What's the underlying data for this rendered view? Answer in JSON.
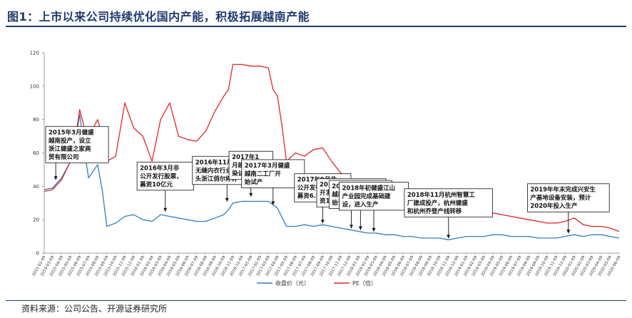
{
  "header": {
    "title": "图1：上市以来公司持续优化国内产能，积极拓展越南产能"
  },
  "footer": {
    "source": "资料来源：公司公告、开源证券研究所"
  },
  "colors": {
    "price": "#2e7fc2",
    "pe": "#e0262a",
    "title": "#1f3a6e"
  },
  "chart_data": {
    "type": "line",
    "x_type": "date",
    "xlim": [
      "2015-02-09",
      "2020-06-09"
    ],
    "ylim": [
      0,
      120
    ],
    "yticks": [
      0,
      20,
      40,
      60,
      80,
      100,
      120
    ],
    "xtick_labels": [
      "2015-02-09",
      "2015-03-09",
      "2015-04-09",
      "2015-05-09",
      "2015-06-09",
      "2015-07-09",
      "2015-08-09",
      "2015-09-09",
      "2015-10-09",
      "2015-11-09",
      "2015-12-09",
      "2016-01-09",
      "2016-02-09",
      "2016-03-09",
      "2016-04-09",
      "2016-05-09",
      "2016-06-09",
      "2016-07-09",
      "2016-08-09",
      "2016-09-09",
      "2016-10-09",
      "2016-11-09",
      "2016-12-09",
      "2017-01-09",
      "2017-02-09",
      "2017-03-09",
      "2017-04-09",
      "2017-05-09",
      "2017-06-09",
      "2017-07-09",
      "2017-08-09",
      "2017-09-09",
      "2017-10-09",
      "2017-11-09",
      "2017-12-09",
      "2018-01-09",
      "2018-02-09",
      "2018-03-09",
      "2018-04-09",
      "2018-05-09",
      "2018-06-09",
      "2018-07-09",
      "2018-08-09",
      "2018-09-09",
      "2018-10-09",
      "2018-11-09",
      "2018-12-09",
      "2019-01-09",
      "2019-02-09",
      "2019-03-09",
      "2019-04-09",
      "2019-05-09",
      "2019-06-09",
      "2019-07-09",
      "2019-08-09",
      "2019-09-09",
      "2019-10-09",
      "2019-11-09",
      "2019-12-09",
      "2020-01-09",
      "2020-02-09",
      "2020-03-09",
      "2020-04-09",
      "2020-05-09",
      "2020-06-09"
    ],
    "series": [
      {
        "name": "收盘价（元）",
        "color": "#2e7fc2",
        "points": [
          [
            "2015-02-09",
            38
          ],
          [
            "2015-03-09",
            39
          ],
          [
            "2015-04-09",
            45
          ],
          [
            "2015-05-09",
            55
          ],
          [
            "2015-05-25",
            66
          ],
          [
            "2015-06-09",
            83
          ],
          [
            "2015-06-25",
            62
          ],
          [
            "2015-07-09",
            45
          ],
          [
            "2015-08-09",
            53
          ],
          [
            "2015-08-25",
            37
          ],
          [
            "2015-09-09",
            16
          ],
          [
            "2015-10-09",
            18
          ],
          [
            "2015-11-09",
            22
          ],
          [
            "2015-12-09",
            23
          ],
          [
            "2016-01-09",
            20
          ],
          [
            "2016-02-09",
            19
          ],
          [
            "2016-03-09",
            23
          ],
          [
            "2016-04-09",
            22
          ],
          [
            "2016-05-09",
            21
          ],
          [
            "2016-06-09",
            20
          ],
          [
            "2016-07-09",
            19
          ],
          [
            "2016-08-09",
            19
          ],
          [
            "2016-09-09",
            21
          ],
          [
            "2016-10-09",
            23
          ],
          [
            "2016-10-25",
            26
          ],
          [
            "2016-11-09",
            30
          ],
          [
            "2016-12-09",
            31
          ],
          [
            "2017-01-09",
            31
          ],
          [
            "2017-02-09",
            31
          ],
          [
            "2017-03-09",
            31
          ],
          [
            "2017-03-25",
            29
          ],
          [
            "2017-04-09",
            27
          ],
          [
            "2017-05-09",
            16
          ],
          [
            "2017-06-09",
            16
          ],
          [
            "2017-07-09",
            17
          ],
          [
            "2017-08-09",
            16
          ],
          [
            "2017-09-09",
            17
          ],
          [
            "2017-10-09",
            16
          ],
          [
            "2017-11-09",
            15
          ],
          [
            "2017-12-09",
            14
          ],
          [
            "2018-01-09",
            13
          ],
          [
            "2018-02-09",
            12
          ],
          [
            "2018-03-09",
            12
          ],
          [
            "2018-04-09",
            11
          ],
          [
            "2018-05-09",
            11
          ],
          [
            "2018-06-09",
            10
          ],
          [
            "2018-07-09",
            10
          ],
          [
            "2018-08-09",
            9
          ],
          [
            "2018-09-09",
            9
          ],
          [
            "2018-10-09",
            9
          ],
          [
            "2018-11-09",
            8
          ],
          [
            "2018-12-09",
            9
          ],
          [
            "2019-01-09",
            10
          ],
          [
            "2019-02-09",
            10
          ],
          [
            "2019-03-09",
            10
          ],
          [
            "2019-04-09",
            11
          ],
          [
            "2019-05-09",
            11
          ],
          [
            "2019-06-09",
            10
          ],
          [
            "2019-07-09",
            10
          ],
          [
            "2019-08-09",
            10
          ],
          [
            "2019-09-09",
            9
          ],
          [
            "2019-10-09",
            9
          ],
          [
            "2019-11-09",
            9
          ],
          [
            "2019-12-09",
            10
          ],
          [
            "2020-01-09",
            11
          ],
          [
            "2020-02-09",
            10
          ],
          [
            "2020-03-09",
            11
          ],
          [
            "2020-04-09",
            11
          ],
          [
            "2020-05-09",
            10
          ],
          [
            "2020-06-09",
            9
          ]
        ]
      },
      {
        "name": "PE（倍）",
        "color": "#e0262a",
        "points": [
          [
            "2015-02-09",
            37
          ],
          [
            "2015-03-09",
            38
          ],
          [
            "2015-04-09",
            44
          ],
          [
            "2015-05-09",
            55
          ],
          [
            "2015-05-25",
            68
          ],
          [
            "2015-06-09",
            86
          ],
          [
            "2015-06-25",
            75
          ],
          [
            "2015-07-09",
            70
          ],
          [
            "2015-08-09",
            80
          ],
          [
            "2015-08-25",
            70
          ],
          [
            "2015-09-09",
            55
          ],
          [
            "2015-10-09",
            58
          ],
          [
            "2015-11-09",
            90
          ],
          [
            "2015-12-09",
            75
          ],
          [
            "2016-01-09",
            70
          ],
          [
            "2016-02-09",
            55
          ],
          [
            "2016-03-09",
            80
          ],
          [
            "2016-04-09",
            90
          ],
          [
            "2016-05-09",
            70
          ],
          [
            "2016-06-09",
            68
          ],
          [
            "2016-07-09",
            67
          ],
          [
            "2016-08-09",
            73
          ],
          [
            "2016-09-09",
            85
          ],
          [
            "2016-10-09",
            94
          ],
          [
            "2016-10-25",
            98
          ],
          [
            "2016-11-09",
            113
          ],
          [
            "2016-12-09",
            113
          ],
          [
            "2017-01-09",
            112
          ],
          [
            "2017-02-09",
            112
          ],
          [
            "2017-03-09",
            111
          ],
          [
            "2017-03-25",
            98
          ],
          [
            "2017-04-09",
            94
          ],
          [
            "2017-04-25",
            75
          ],
          [
            "2017-05-09",
            55
          ],
          [
            "2017-06-09",
            60
          ],
          [
            "2017-07-09",
            58
          ],
          [
            "2017-08-09",
            62
          ],
          [
            "2017-09-09",
            63
          ],
          [
            "2017-10-09",
            55
          ],
          [
            "2017-11-09",
            48
          ],
          [
            "2017-12-09",
            43
          ],
          [
            "2018-01-09",
            42
          ],
          [
            "2018-02-09",
            40
          ],
          [
            "2018-03-09",
            37
          ],
          [
            "2018-04-09",
            33
          ],
          [
            "2018-05-09",
            28
          ],
          [
            "2018-06-09",
            27
          ],
          [
            "2018-07-09",
            26
          ],
          [
            "2018-08-09",
            25
          ],
          [
            "2018-09-09",
            23
          ],
          [
            "2018-10-09",
            22
          ],
          [
            "2018-11-09",
            26
          ],
          [
            "2018-12-09",
            34
          ],
          [
            "2019-01-09",
            25
          ],
          [
            "2019-02-09",
            26
          ],
          [
            "2019-03-09",
            22
          ],
          [
            "2019-04-09",
            24
          ],
          [
            "2019-05-09",
            23
          ],
          [
            "2019-06-09",
            22
          ],
          [
            "2019-07-09",
            21
          ],
          [
            "2019-08-09",
            20
          ],
          [
            "2019-09-09",
            19
          ],
          [
            "2019-10-09",
            18
          ],
          [
            "2019-11-09",
            18
          ],
          [
            "2019-12-09",
            19
          ],
          [
            "2020-01-09",
            21
          ],
          [
            "2020-02-09",
            17
          ],
          [
            "2020-03-09",
            16
          ],
          [
            "2020-04-09",
            16
          ],
          [
            "2020-05-09",
            15
          ],
          [
            "2020-06-09",
            13
          ]
        ]
      }
    ],
    "annotations": [
      {
        "text": [
          "2015年3月健盛",
          "越南投产，设立",
          "浙江健盛之家商",
          "贸有限公司"
        ],
        "date": "2015-03-20",
        "value": 43
      },
      {
        "text": [
          "2016年3月非",
          "公开发行股票，",
          "募资10亿元"
        ],
        "date": "2016-03-25",
        "value": 24
      },
      {
        "text": [
          "2016年11月收购",
          "无缝内衣行业龙",
          "头浙江俏尔婷婷"
        ],
        "date": "2016-10-20",
        "value": 30
      },
      {
        "text": [
          "2017年1",
          "月越南印",
          "染试生产"
        ],
        "date": "2017-01-09",
        "value": 33
      },
      {
        "text": [
          "2017年3月健盛",
          "越南二工厂开",
          "始试产"
        ],
        "date": "2017-03-25",
        "value": 28
      },
      {
        "text": [
          "2017年9月非",
          "公开发行股票，",
          "募资6.97亿元"
        ],
        "date": "2017-09-09",
        "value": 17
      },
      {
        "text": [
          "2017年12月非公",
          "开发行股票，募",
          "资1.92亿元"
        ],
        "date": "2017-12-15",
        "value": 14
      },
      {
        "text": [
          "2018年1月健盛",
          "越南三工厂开",
          "始试产"
        ],
        "date": "2018-01-15",
        "value": 13
      },
      {
        "text": [
          "2018年初健盛江山",
          "产业园完成基础建",
          "设，进入生产"
        ],
        "date": "2018-03-01",
        "value": 12
      },
      {
        "text": [
          "2018年11月杭州智慧工",
          "厂建成投产，杭州健盛",
          "和杭州乔登产线转移"
        ],
        "date": "2018-11-09",
        "value": 8
      },
      {
        "text": [
          "2019年年末完成兴安生",
          "产基地设备安装，预计",
          "2020年投入生产"
        ],
        "date": "2019-12-20",
        "value": 11
      }
    ]
  }
}
